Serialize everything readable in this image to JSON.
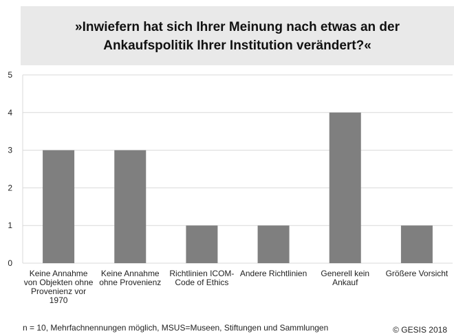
{
  "chart_data": {
    "type": "bar",
    "title": "»Inwiefern hat sich Ihrer Meinung nach etwas an der\nAnkaufspolitik Ihrer Institution verändert?«",
    "categories": [
      "Keine Annahme\nvon Objekten ohne\nProvenienz vor\n1970",
      "Keine Annahme\nohne Provenienz",
      "Richtlinien ICOM-\nCode of Ethics",
      "Andere Richtlinien",
      "Generell kein\nAnkauf",
      "Größere Vorsicht"
    ],
    "values": [
      3,
      3,
      1,
      1,
      4,
      1
    ],
    "color": "#7f7f7f",
    "ylim": [
      0,
      5
    ],
    "yticks": [
      0,
      1,
      2,
      3,
      4,
      5
    ],
    "grid": true,
    "footnote": "n = 10, Mehrfachnennungen möglich, MSUS=Museen, Stiftungen und Sammlungen",
    "source": "© GESIS 2018"
  }
}
